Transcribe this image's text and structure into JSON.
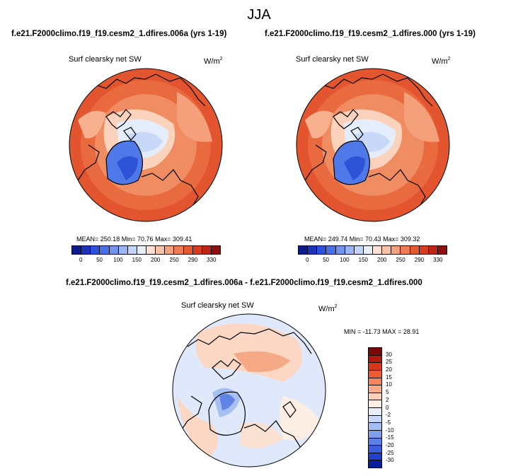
{
  "figure": {
    "title": "JJA",
    "left_panel": {
      "case": "f.e21.F2000climo.f19_f19.cesm2_1.dfires.006a (yrs 1-19)",
      "variable": "Surf clearsky net SW",
      "units": "W/m",
      "units_sup": "2",
      "stats": "MEAN= 250.18  Min=  70.76  Max= 309.41"
    },
    "right_panel": {
      "case": "f.e21.F2000climo.f19_f19.cesm2_1.dfires.000 (yrs 1-19)",
      "variable": "Surf clearsky net SW",
      "units": "W/m",
      "units_sup": "2",
      "stats": "MEAN= 249.74  Min=  70.43  Max= 309.32"
    },
    "diff_panel": {
      "case": "f.e21.F2000climo.f19_f19.cesm2_1.dfires.006a - f.e21.F2000climo.f19_f19.cesm2_1.dfires.000",
      "variable": "Surf clearsky net SW",
      "units": "W/m",
      "units_sup": "2",
      "stats": "MIN = -11.73  MAX =  28.91"
    },
    "abs_colorbar": {
      "colors": [
        "#0b1a8c",
        "#1b33b8",
        "#2b52d8",
        "#4a72e6",
        "#6f95ef",
        "#9bb6f5",
        "#c4d6fa",
        "#e9f0fd",
        "#fde2d4",
        "#fbc3a6",
        "#f7a07a",
        "#f07b52",
        "#e65a32",
        "#d63c1d",
        "#bd2614",
        "#8f1010"
      ],
      "labels": [
        "0",
        "50",
        "100",
        "150",
        "200",
        "250",
        "290",
        "330"
      ]
    },
    "diff_colorbar": {
      "colors": [
        "#7a0808",
        "#b11a0d",
        "#d8361a",
        "#ec5b33",
        "#f4845a",
        "#f9ab87",
        "#fcd1ba",
        "#fdeee4",
        "#e6eefb",
        "#c6d8f7",
        "#a2bef2",
        "#7e9fec",
        "#5b80e6",
        "#3a5ede",
        "#2340c8",
        "#0c1f9a"
      ],
      "labels": [
        "30",
        "25",
        "20",
        "15",
        "10",
        "5",
        "2",
        "0",
        "-2",
        "-5",
        "-10",
        "-15",
        "-20",
        "-25",
        "-30"
      ]
    }
  }
}
